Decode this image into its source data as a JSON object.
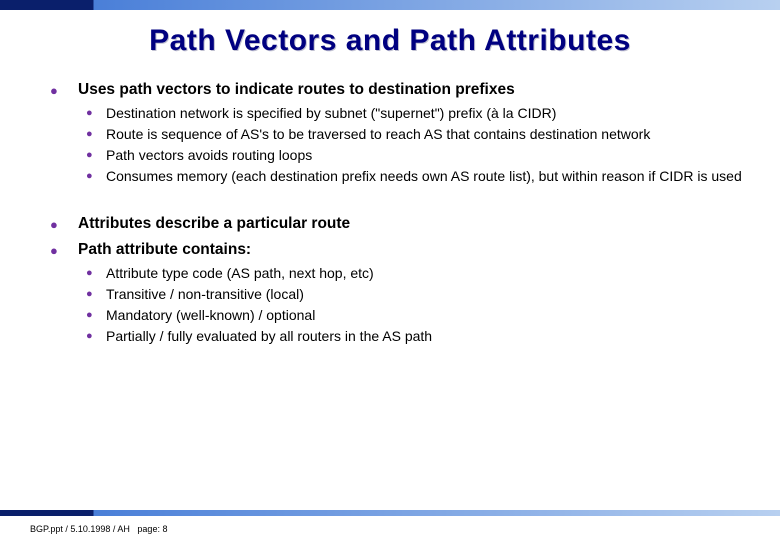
{
  "title": "Path Vectors and Path Attributes",
  "bullets": {
    "b1": {
      "text": "Uses path vectors to indicate routes to destination prefixes",
      "sub": {
        "s1": "Destination network is specified by subnet (\"supernet\") prefix (à la CIDR)",
        "s2": "Route is sequence of AS's to be traversed to reach AS that contains destination network",
        "s3": "Path vectors avoids routing loops",
        "s4": "Consumes memory (each destination prefix needs own AS route list), but within reason if CIDR is used"
      }
    },
    "b2": {
      "text": "Attributes describe a particular route"
    },
    "b3": {
      "text": "Path attribute contains:",
      "sub": {
        "s1": "Attribute type code (AS path, next hop, etc)",
        "s2": "Transitive / non-transitive (local)",
        "s3": "Mandatory (well-known) / optional",
        "s4": "Partially / fully evaluated by all routers in the AS path"
      }
    }
  },
  "footer": {
    "left": "BGP.ppt / 5.10.1998 / AH",
    "right": "page: 8"
  }
}
